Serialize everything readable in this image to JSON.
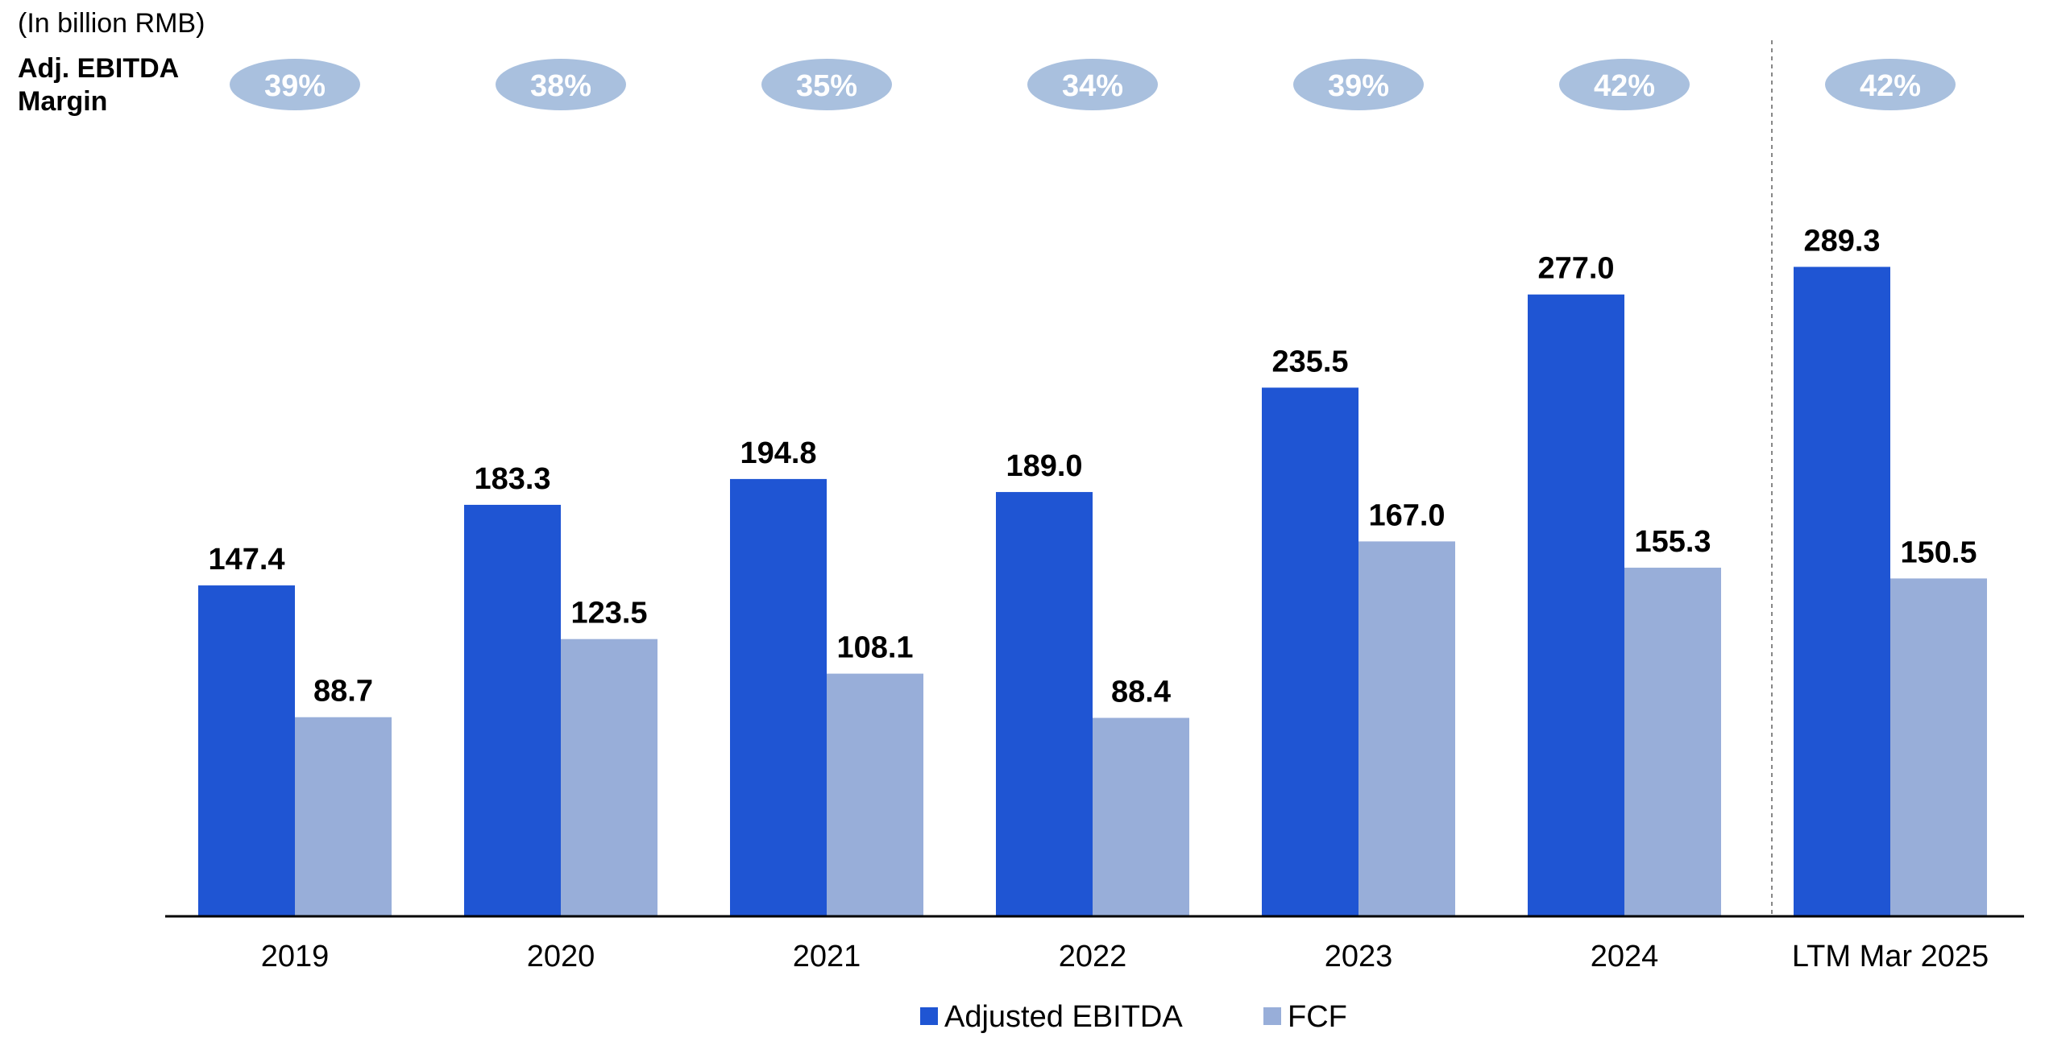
{
  "chart_data": {
    "type": "bar",
    "unit_note": "(In billion RMB)",
    "margin_label_line1": "Adj. EBITDA",
    "margin_label_line2": "Margin",
    "categories": [
      "2019",
      "2020",
      "2021",
      "2022",
      "2023",
      "2024",
      "LTM Mar 2025"
    ],
    "margins": [
      "39%",
      "38%",
      "35%",
      "34%",
      "39%",
      "42%",
      "42%"
    ],
    "series": [
      {
        "name": "Adjusted EBITDA",
        "color": "#1f55d3",
        "values": [
          147.4,
          183.3,
          194.8,
          189.0,
          235.5,
          277.0,
          289.3
        ],
        "labels": [
          "147.4",
          "183.3",
          "194.8",
          "189.0",
          "235.5",
          "277.0",
          "289.3"
        ]
      },
      {
        "name": "FCF",
        "color": "#98aed9",
        "values": [
          88.7,
          123.5,
          108.1,
          88.4,
          167.0,
          155.3,
          150.5
        ],
        "labels": [
          "88.7",
          "123.5",
          "108.1",
          "88.4",
          "167.0",
          "155.3",
          "150.5"
        ]
      }
    ],
    "ylim": [
      0,
      320
    ],
    "grid": false,
    "legend_position": "bottom",
    "separator_before_category": "LTM Mar 2025",
    "margin_pill_color": "#a9c0de"
  }
}
